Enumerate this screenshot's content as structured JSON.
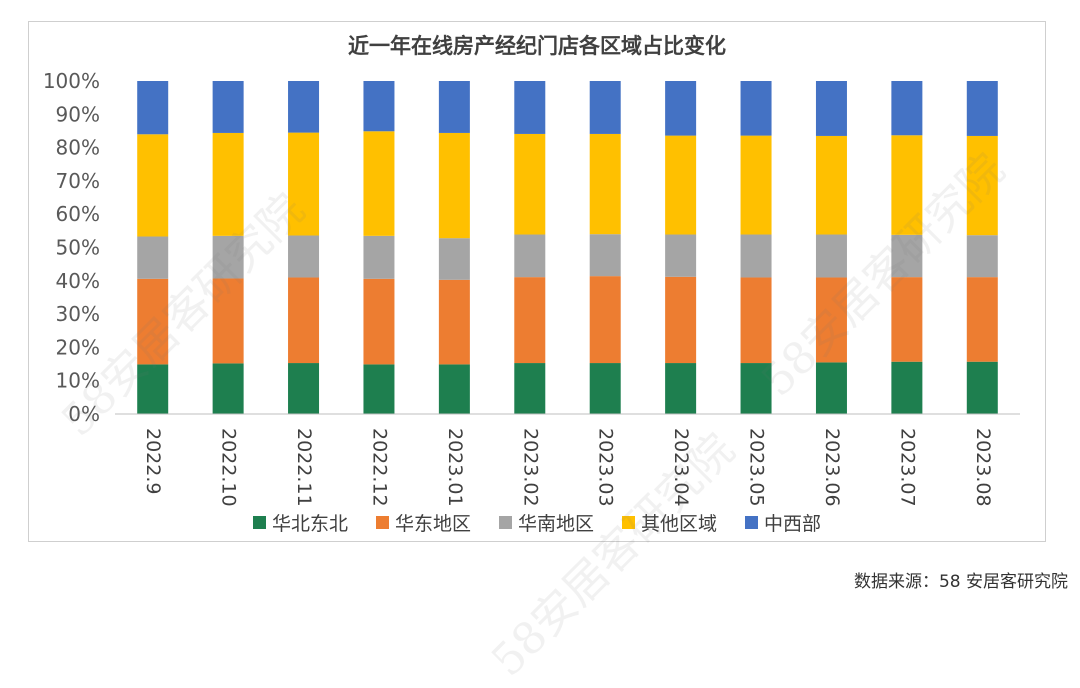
{
  "chart_data": {
    "type": "bar",
    "stacked": "percent",
    "title": "近一年在线房产经纪门店各区域占比变化",
    "categories": [
      "2022.9",
      "2022.10",
      "2022.11",
      "2022.12",
      "2023.01",
      "2023.02",
      "2023.03",
      "2023.04",
      "2023.05",
      "2023.06",
      "2023.07",
      "2023.08"
    ],
    "yticks": [
      "0%",
      "10%",
      "20%",
      "30%",
      "40%",
      "50%",
      "60%",
      "70%",
      "80%",
      "90%",
      "100%"
    ],
    "ylim": [
      0,
      100
    ],
    "legend_position": "bottom",
    "series": [
      {
        "name": "华北东北",
        "color": "#1e7f4f",
        "values": [
          14.9,
          15.2,
          15.3,
          14.9,
          14.9,
          15.3,
          15.3,
          15.3,
          15.3,
          15.5,
          15.7,
          15.7
        ]
      },
      {
        "name": "华东地区",
        "color": "#ed7d31",
        "values": [
          25.7,
          25.5,
          25.7,
          25.7,
          25.4,
          25.8,
          26.1,
          25.9,
          25.7,
          25.5,
          25.4,
          25.4
        ]
      },
      {
        "name": "华南地区",
        "color": "#a5a5a5",
        "values": [
          12.7,
          12.8,
          12.6,
          12.9,
          12.5,
          12.8,
          12.6,
          12.7,
          12.9,
          12.9,
          12.7,
          12.6
        ]
      },
      {
        "name": "其他区域",
        "color": "#ffc000",
        "values": [
          30.7,
          30.9,
          30.9,
          31.4,
          31.6,
          30.2,
          30.1,
          29.7,
          29.7,
          29.6,
          29.9,
          29.8
        ]
      },
      {
        "name": "中西部",
        "color": "#4472c4",
        "values": [
          16.0,
          15.6,
          15.5,
          15.1,
          15.6,
          15.9,
          15.9,
          16.4,
          16.4,
          16.5,
          16.3,
          16.5
        ]
      }
    ]
  },
  "source": "数据来源：58 安居客研究院",
  "watermark": "58安居客研究院"
}
